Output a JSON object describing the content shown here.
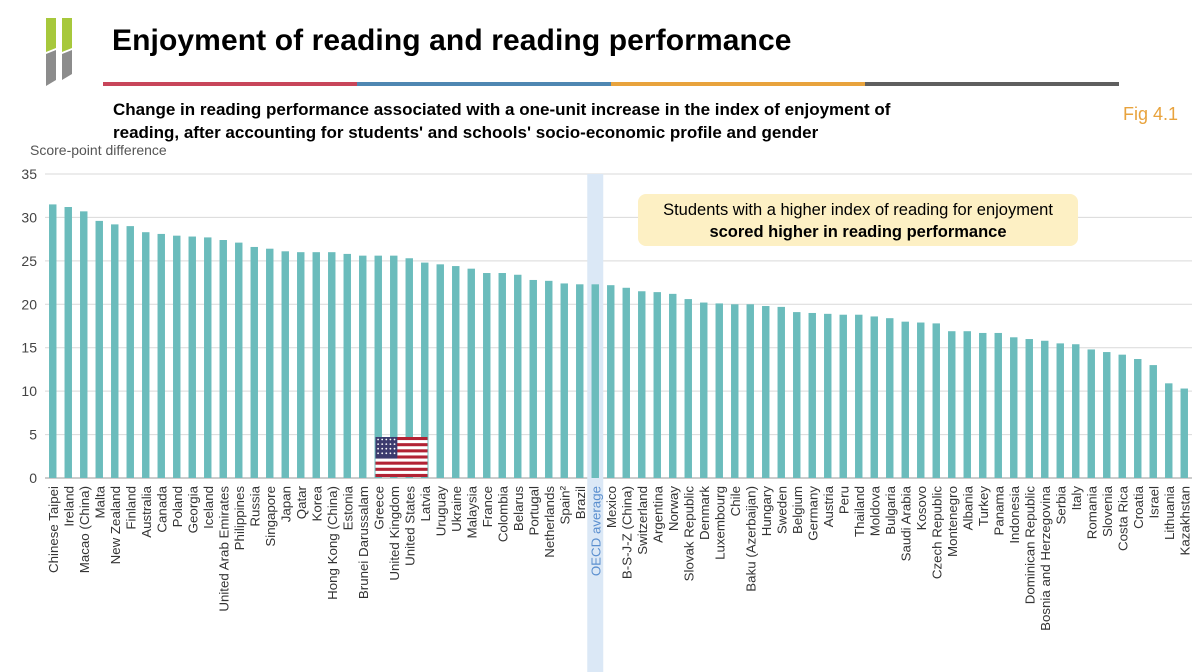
{
  "title": "Enjoyment of reading and reading performance",
  "subtitle": "Change in reading performance associated with a one-unit increase in the index of enjoyment of reading, after accounting for students' and schools' socio-economic profile and gender",
  "fig_label": "Fig 4.1",
  "callout": {
    "line1": "Students with a higher index of reading for enjoyment",
    "line2": "scored higher in reading performance"
  },
  "colors": {
    "bar": "#6bbcbc",
    "highlight_band": "#dbe8f6",
    "rule": [
      "#c8455a",
      "#4f87b2",
      "#e8a33d",
      "#5f5f5f"
    ],
    "logo_green": "#a7c83c",
    "logo_grey": "#8c8c8c",
    "fig_label": "#e8a33d"
  },
  "icons": {
    "logo": "oecd-logo",
    "flag": "us-flag-icon"
  },
  "highlight": {
    "category": "OECD average",
    "flag_category": "United States"
  },
  "chart_data": {
    "type": "bar",
    "ylabel": "Score-point difference",
    "ylim": [
      0,
      35
    ],
    "yticks": [
      0,
      5,
      10,
      15,
      20,
      25,
      30,
      35
    ],
    "grid": true,
    "categories": [
      "Chinese Taipei",
      "Ireland",
      "Macao (China)",
      "Malta",
      "New Zealand",
      "Finland",
      "Australia",
      "Canada",
      "Poland",
      "Georgia",
      "Iceland",
      "United Arab Emirates",
      "Philippines",
      "Russia",
      "Singapore",
      "Japan",
      "Qatar",
      "Korea",
      "Hong Kong (China)",
      "Estonia",
      "Brunei Darussalam",
      "Greece",
      "United Kingdom",
      "United States",
      "Latvia",
      "Uruguay",
      "Ukraine",
      "Malaysia",
      "France",
      "Colombia",
      "Belarus",
      "Portugal",
      "Netherlands",
      "Spain²",
      "Brazil",
      "OECD average",
      "Mexico",
      "B-S-J-Z (China)",
      "Switzerland",
      "Argentina",
      "Norway",
      "Slovak Republic",
      "Denmark",
      "Luxembourg",
      "Chile",
      "Baku (Azerbaijan)",
      "Hungary",
      "Sweden",
      "Belgium",
      "Germany",
      "Austria",
      "Peru",
      "Thailand",
      "Moldova",
      "Bulgaria",
      "Saudi Arabia",
      "Kosovo",
      "Czech Republic",
      "Montenegro",
      "Albania",
      "Turkey",
      "Panama",
      "Indonesia",
      "Dominican Republic",
      "Bosnia and Herzegovina",
      "Serbia",
      "Italy",
      "Romania",
      "Slovenia",
      "Costa Rica",
      "Croatia",
      "Israel",
      "Lithuania",
      "Kazakhstan"
    ],
    "values": [
      31.5,
      31.2,
      30.7,
      29.6,
      29.2,
      29.0,
      28.3,
      28.1,
      27.9,
      27.8,
      27.7,
      27.4,
      27.1,
      26.6,
      26.4,
      26.1,
      26.0,
      26.0,
      26.0,
      25.8,
      25.6,
      25.6,
      25.6,
      25.3,
      24.8,
      24.6,
      24.4,
      24.1,
      23.6,
      23.6,
      23.4,
      22.8,
      22.7,
      22.4,
      22.3,
      22.3,
      22.2,
      21.9,
      21.5,
      21.4,
      21.2,
      20.6,
      20.2,
      20.1,
      20.0,
      20.0,
      19.8,
      19.7,
      19.1,
      19.0,
      18.9,
      18.8,
      18.8,
      18.6,
      18.4,
      18.0,
      17.9,
      17.8,
      16.9,
      16.9,
      16.7,
      16.7,
      16.2,
      16.0,
      15.8,
      15.5,
      15.4,
      14.8,
      14.5,
      14.2,
      13.7,
      13.0,
      10.9,
      10.3
    ]
  }
}
